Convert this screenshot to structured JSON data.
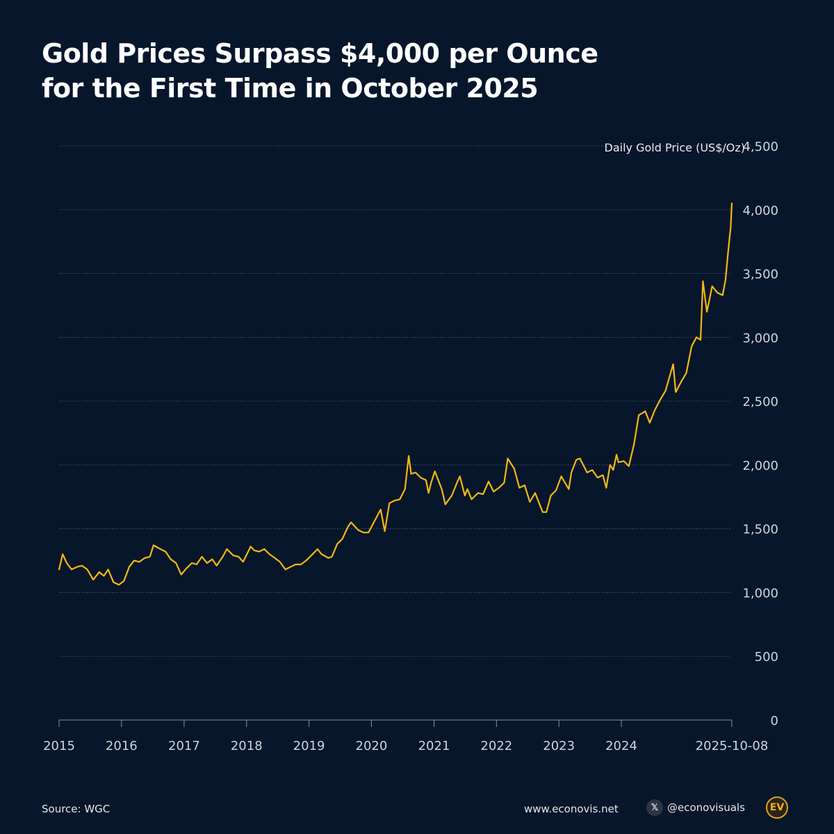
{
  "title_line1": "Gold Prices Surpass $4,000 per Ounce",
  "title_line2": "for the First Time in October 2025",
  "footer": {
    "source": "Source: WGC",
    "website": "www.econovis.net",
    "handle": "@econovisuals",
    "logo_text": "EV",
    "x_icon": "x-logo-icon"
  },
  "colors": {
    "background": "#07162b",
    "line": "#f7b90f",
    "grid": "#4a5568",
    "tick_text": "#d0d4da"
  },
  "chart_data": {
    "type": "line",
    "ylabel": "Daily Gold Price (US$/Oz)",
    "ylim": [
      0,
      4500
    ],
    "y_ticks": [
      "0",
      "500",
      "1,000",
      "1,500",
      "2,000",
      "2,500",
      "3,000",
      "3,500",
      "4,000",
      "4,500"
    ],
    "x_ticks": [
      "2015",
      "2016",
      "2017",
      "2018",
      "2019",
      "2020",
      "2021",
      "2022",
      "2023",
      "2024",
      "2025-10-08"
    ],
    "y_axis_side": "right",
    "grid": true,
    "series": [
      {
        "x": [
          "2015-01-01",
          "2015-01-22",
          "2015-02-15",
          "2015-03-15",
          "2015-04-15",
          "2015-05-15",
          "2015-06-15",
          "2015-07-20",
          "2015-08-24",
          "2015-09-20",
          "2015-10-15",
          "2015-11-15",
          "2015-12-17",
          "2016-01-15",
          "2016-02-15",
          "2016-03-15",
          "2016-04-15",
          "2016-05-15",
          "2016-06-15",
          "2016-07-06",
          "2016-08-15",
          "2016-09-15",
          "2016-10-15",
          "2016-11-15",
          "2016-12-15",
          "2017-01-15",
          "2017-02-15",
          "2017-03-15",
          "2017-04-15",
          "2017-05-15",
          "2017-06-15",
          "2017-07-10",
          "2017-08-15",
          "2017-09-08",
          "2017-10-15",
          "2017-11-15",
          "2017-12-12",
          "2018-01-25",
          "2018-02-15",
          "2018-03-15",
          "2018-04-15",
          "2018-05-15",
          "2018-06-15",
          "2018-07-15",
          "2018-08-16",
          "2018-09-15",
          "2018-10-15",
          "2018-11-15",
          "2018-12-15",
          "2019-01-15",
          "2019-02-20",
          "2019-03-15",
          "2019-04-25",
          "2019-05-15",
          "2019-06-15",
          "2019-07-15",
          "2019-08-15",
          "2019-09-04",
          "2019-10-15",
          "2019-11-15",
          "2019-12-15",
          "2020-01-15",
          "2020-02-24",
          "2020-03-19",
          "2020-04-15",
          "2020-05-15",
          "2020-06-15",
          "2020-07-15",
          "2020-08-06",
          "2020-08-20",
          "2020-09-15",
          "2020-10-15",
          "2020-11-15",
          "2020-11-30",
          "2020-12-15",
          "2021-01-06",
          "2021-02-15",
          "2021-03-08",
          "2021-04-15",
          "2021-05-15",
          "2021-06-01",
          "2021-06-30",
          "2021-07-15",
          "2021-08-09",
          "2021-09-15",
          "2021-10-15",
          "2021-11-16",
          "2021-12-15",
          "2022-01-15",
          "2022-02-15",
          "2022-03-08",
          "2022-04-15",
          "2022-05-15",
          "2022-06-15",
          "2022-07-15",
          "2022-08-15",
          "2022-09-28",
          "2022-10-20",
          "2022-11-15",
          "2022-12-15",
          "2023-01-15",
          "2023-02-28",
          "2023-03-15",
          "2023-04-13",
          "2023-05-04",
          "2023-06-15",
          "2023-07-15",
          "2023-08-15",
          "2023-09-15",
          "2023-10-05",
          "2023-10-27",
          "2023-11-15",
          "2023-12-04",
          "2023-12-15",
          "2024-01-15",
          "2024-02-14",
          "2024-03-15",
          "2024-04-12",
          "2024-05-20",
          "2024-06-15",
          "2024-07-15",
          "2024-08-15",
          "2024-09-15",
          "2024-10-30",
          "2024-11-14",
          "2024-12-15",
          "2025-01-15",
          "2025-02-15",
          "2025-03-15",
          "2025-04-08",
          "2025-04-22",
          "2025-05-15",
          "2025-06-15",
          "2025-07-15",
          "2025-08-15",
          "2025-09-01",
          "2025-09-15",
          "2025-10-01",
          "2025-10-08"
        ],
        "y": [
          1180,
          1300,
          1230,
          1180,
          1200,
          1210,
          1180,
          1100,
          1160,
          1130,
          1180,
          1080,
          1060,
          1090,
          1200,
          1250,
          1240,
          1270,
          1280,
          1370,
          1340,
          1320,
          1260,
          1230,
          1140,
          1190,
          1230,
          1220,
          1280,
          1230,
          1260,
          1210,
          1280,
          1340,
          1290,
          1280,
          1240,
          1360,
          1330,
          1320,
          1340,
          1300,
          1270,
          1240,
          1180,
          1200,
          1220,
          1220,
          1250,
          1290,
          1340,
          1300,
          1270,
          1280,
          1380,
          1420,
          1510,
          1550,
          1490,
          1470,
          1470,
          1550,
          1650,
          1480,
          1700,
          1720,
          1730,
          1810,
          2070,
          1930,
          1940,
          1900,
          1880,
          1780,
          1860,
          1950,
          1810,
          1690,
          1760,
          1860,
          1910,
          1760,
          1810,
          1730,
          1780,
          1770,
          1870,
          1790,
          1820,
          1860,
          2050,
          1970,
          1820,
          1840,
          1710,
          1780,
          1630,
          1630,
          1760,
          1800,
          1910,
          1810,
          1940,
          2040,
          2050,
          1940,
          1960,
          1900,
          1920,
          1820,
          2000,
          1960,
          2080,
          2020,
          2030,
          1990,
          2160,
          2390,
          2420,
          2330,
          2430,
          2510,
          2580,
          2790,
          2570,
          2650,
          2720,
          2930,
          3000,
          2980,
          3440,
          3200,
          3400,
          3350,
          3330,
          3450,
          3650,
          3860,
          4050
        ]
      }
    ]
  }
}
